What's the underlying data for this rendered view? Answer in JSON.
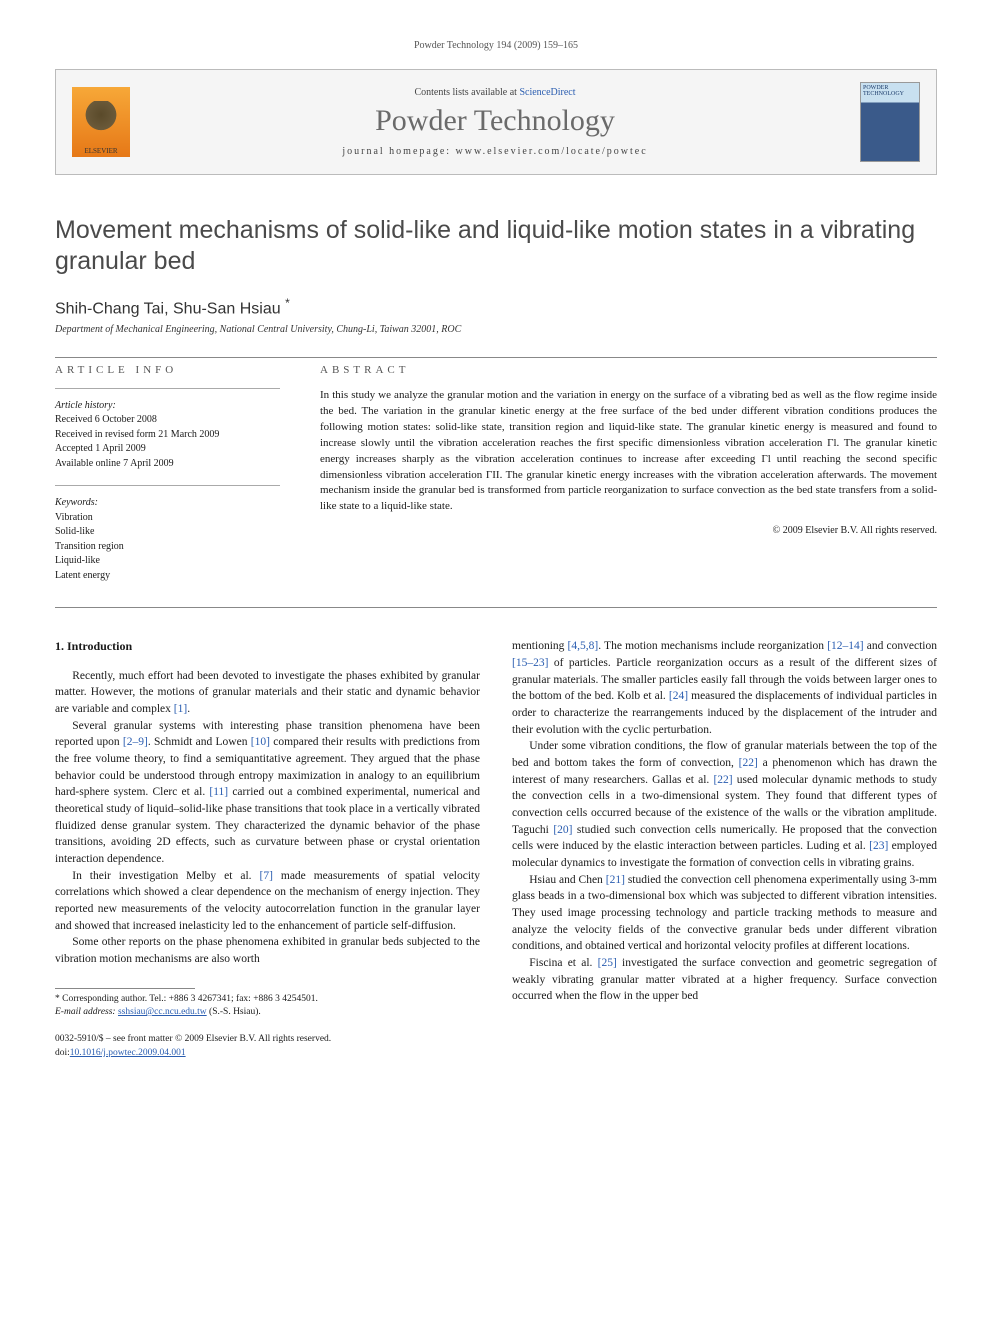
{
  "running_header": "Powder Technology 194 (2009) 159–165",
  "masthead": {
    "contents_prefix": "Contents lists available at ",
    "contents_link": "ScienceDirect",
    "journal_title": "Powder Technology",
    "homepage_prefix": "journal homepage: ",
    "homepage_url": "www.elsevier.com/locate/powtec",
    "publisher_logo_label": "ELSEVIER",
    "cover_label": "POWDER TECHNOLOGY"
  },
  "article": {
    "title": "Movement mechanisms of solid-like and liquid-like motion states in a vibrating granular bed",
    "authors": "Shih-Chang Tai, Shu-San Hsiau ",
    "author_marker": "*",
    "affiliation": "Department of Mechanical Engineering, National Central University, Chung-Li, Taiwan 32001, ROC"
  },
  "info": {
    "label": "article info",
    "history_hdr": "Article history:",
    "history": [
      "Received 6 October 2008",
      "Received in revised form 21 March 2009",
      "Accepted 1 April 2009",
      "Available online 7 April 2009"
    ],
    "keywords_hdr": "Keywords:",
    "keywords": [
      "Vibration",
      "Solid-like",
      "Transition region",
      "Liquid-like",
      "Latent energy"
    ]
  },
  "abstract": {
    "label": "abstract",
    "text": "In this study we analyze the granular motion and the variation in energy on the surface of a vibrating bed as well as the flow regime inside the bed. The variation in the granular kinetic energy at the free surface of the bed under different vibration conditions produces the following motion states: solid-like state, transition region and liquid-like state. The granular kinetic energy is measured and found to increase slowly until the vibration acceleration reaches the first specific dimensionless vibration acceleration Γl. The granular kinetic energy increases sharply as the vibration acceleration continues to increase after exceeding Γl until reaching the second specific dimensionless vibration acceleration ΓII. The granular kinetic energy increases with the vibration acceleration afterwards. The movement mechanism inside the granular bed is transformed from particle reorganization to surface convection as the bed state transfers from a solid-like state to a liquid-like state.",
    "copyright": "© 2009 Elsevier B.V. All rights reserved."
  },
  "body": {
    "section_heading": "1. Introduction",
    "p1": "Recently, much effort had been devoted to investigate the phases exhibited by granular matter. However, the motions of granular materials and their static and dynamic behavior are variable and complex [1].",
    "p2": "Several granular systems with interesting phase transition phenomena have been reported upon [2–9]. Schmidt and Lowen [10] compared their results with predictions from the free volume theory, to find a semiquantitative agreement. They argued that the phase behavior could be understood through entropy maximization in analogy to an equilibrium hard-sphere system. Clerc et al. [11] carried out a combined experimental, numerical and theoretical study of liquid–solid-like phase transitions that took place in a vertically vibrated fluidized dense granular system. They characterized the dynamic behavior of the phase transitions, avoiding 2D effects, such as curvature between phase or crystal orientation interaction dependence.",
    "p3": "In their investigation Melby et al. [7] made measurements of spatial velocity correlations which showed a clear dependence on the mechanism of energy injection. They reported new measurements of the velocity autocorrelation function in the granular layer and showed that increased inelasticity led to the enhancement of particle self-diffusion.",
    "p4": "Some other reports on the phase phenomena exhibited in granular beds subjected to the vibration motion mechanisms are also worth",
    "p5": "mentioning [4,5,8]. The motion mechanisms include reorganization [12–14] and convection [15–23] of particles. Particle reorganization occurs as a result of the different sizes of granular materials. The smaller particles easily fall through the voids between larger ones to the bottom of the bed. Kolb et al. [24] measured the displacements of individual particles in order to characterize the rearrangements induced by the displacement of the intruder and their evolution with the cyclic perturbation.",
    "p6": "Under some vibration conditions, the flow of granular materials between the top of the bed and bottom takes the form of convection, [22] a phenomenon which has drawn the interest of many researchers. Gallas et al. [22] used molecular dynamic methods to study the convection cells in a two-dimensional system. They found that different types of convection cells occurred because of the existence of the walls or the vibration amplitude. Taguchi [20] studied such convection cells numerically. He proposed that the convection cells were induced by the elastic interaction between particles. Luding et al. [23] employed molecular dynamics to investigate the formation of convection cells in vibrating grains.",
    "p7": "Hsiau and Chen [21] studied the convection cell phenomena experimentally using 3-mm glass beads in a two-dimensional box which was subjected to different vibration intensities. They used image processing technology and particle tracking methods to measure and analyze the velocity fields of the convective granular beds under different vibration conditions, and obtained vertical and horizontal velocity profiles at different locations.",
    "p8": "Fiscina et al. [25] investigated the surface convection and geometric segregation of weakly vibrating granular matter vibrated at a higher frequency. Surface convection occurred when the flow in the upper bed"
  },
  "footer": {
    "corresponding": "* Corresponding author. Tel.: +886 3 4267341; fax: +886 3 4254501.",
    "email_label": "E-mail address: ",
    "email": "sshsiau@cc.ncu.edu.tw",
    "email_suffix": " (S.-S. Hsiau).",
    "issn_line": "0032-5910/$ – see front matter © 2009 Elsevier B.V. All rights reserved.",
    "doi_line": "doi:10.1016/j.powtec.2009.04.001"
  },
  "colors": {
    "link": "#2a5db0",
    "text": "#1a1a1a",
    "muted": "#555555",
    "rule": "#888888",
    "elsevier_orange": "#e67817"
  }
}
